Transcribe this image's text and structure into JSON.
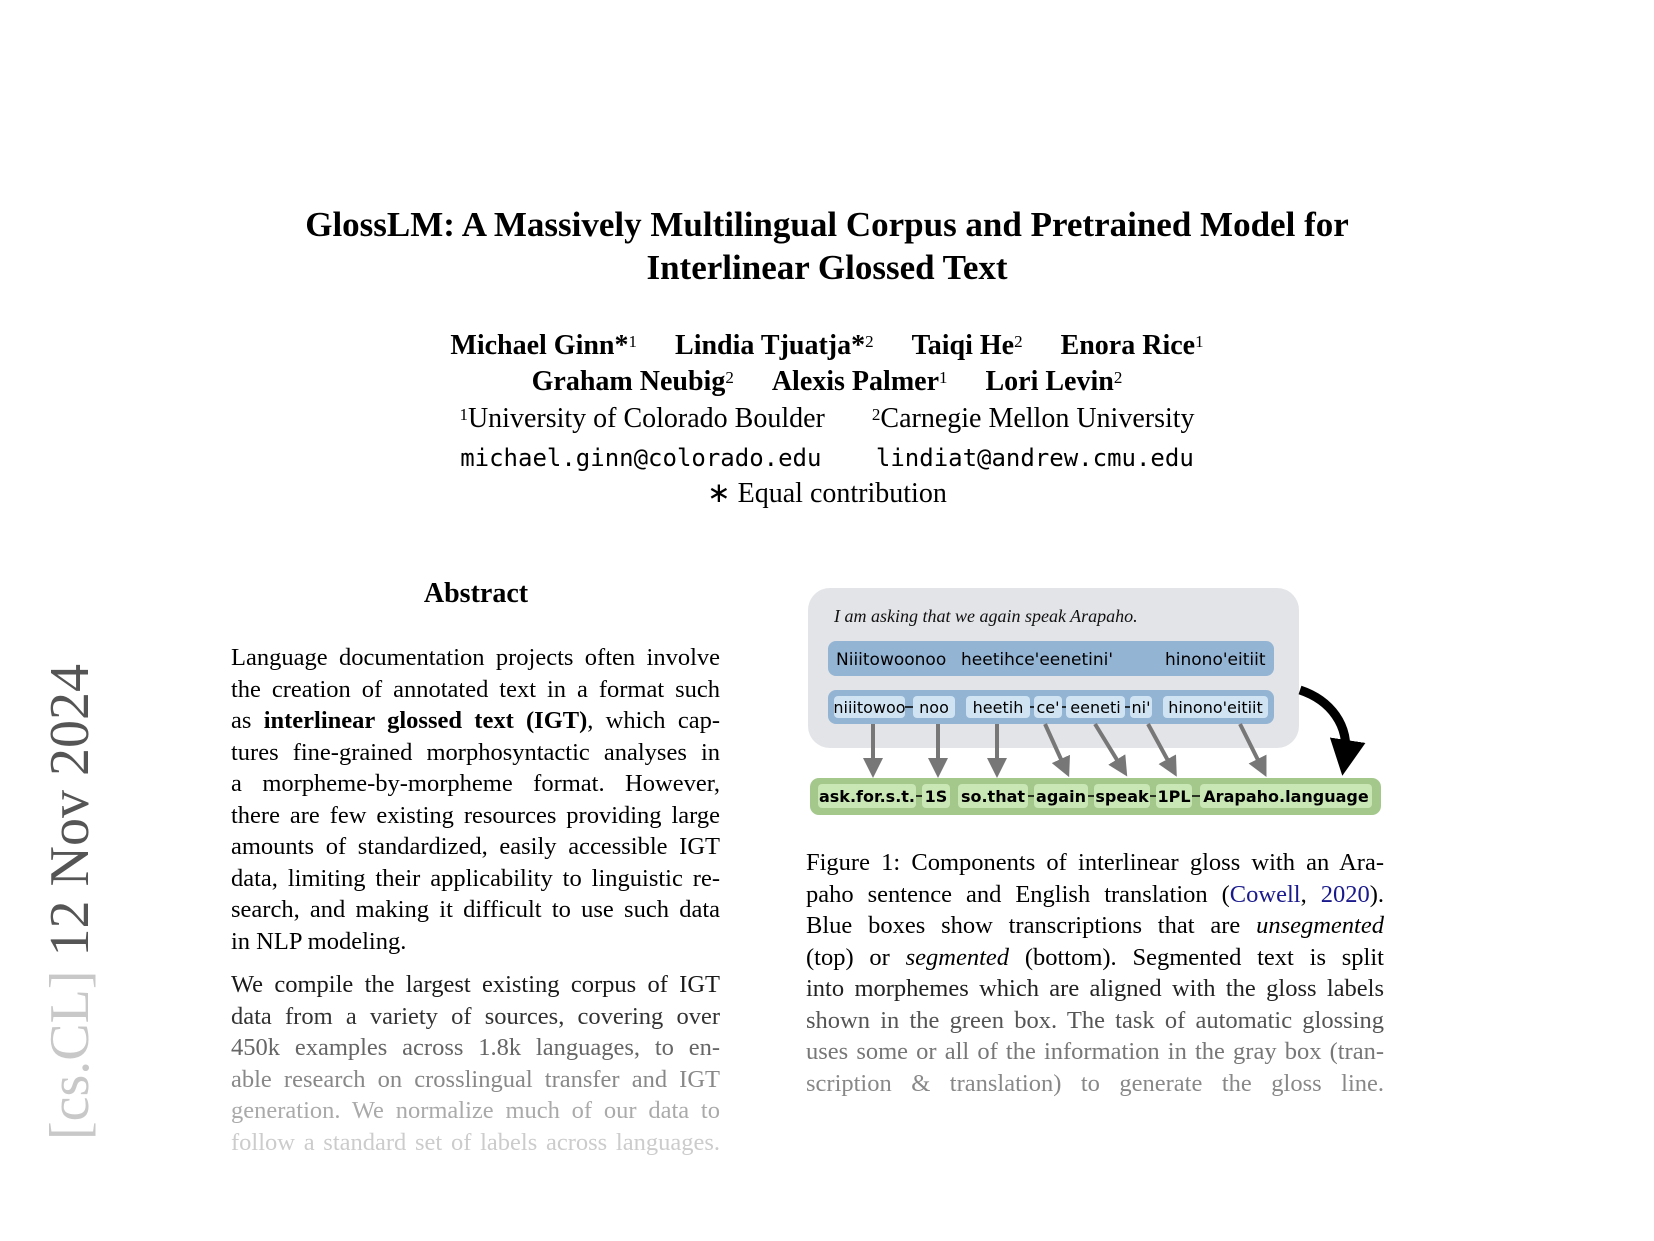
{
  "paper": {
    "title_lines": [
      "GlossLM: A Massively Multilingual Corpus and Pretrained Model for",
      "Interlinear Glossed Text"
    ],
    "authors_row1": [
      {
        "name": "Michael Ginn*",
        "aff": "1"
      },
      {
        "name": "Lindia Tjuatja*",
        "aff": "2"
      },
      {
        "name": "Taiqi He",
        "aff": "2"
      },
      {
        "name": "Enora Rice",
        "aff": "1"
      }
    ],
    "authors_row2": [
      {
        "name": "Graham Neubig",
        "aff": "2"
      },
      {
        "name": "Alexis Palmer",
        "aff": "1"
      },
      {
        "name": "Lori Levin",
        "aff": "2"
      }
    ],
    "affiliations": [
      {
        "num": "1",
        "name": "University of Colorado Boulder"
      },
      {
        "num": "2",
        "name": "Carnegie Mellon University"
      }
    ],
    "emails": [
      "michael.ginn@colorado.edu",
      "lindiat@andrew.cmu.edu"
    ],
    "equal_contribution": "∗ Equal contribution",
    "arxiv_stamp": {
      "category": "[cs.CL]",
      "date": "12 Nov 2024"
    }
  },
  "abstract": {
    "heading": "Abstract",
    "paragraphs": [
      [
        [
          [
            "Language documentation projects often involve",
            ""
          ]
        ],
        [
          [
            "the creation of annotated text in a format such",
            ""
          ]
        ],
        [
          [
            "as ",
            ""
          ],
          [
            "interlinear glossed text (IGT)",
            "b"
          ],
          [
            ", which cap-",
            ""
          ]
        ],
        [
          [
            "tures fine-grained morphosyntactic analyses in",
            ""
          ]
        ],
        [
          [
            "a morpheme-by-morpheme format. However,",
            ""
          ]
        ],
        [
          [
            "there are few existing resources providing large",
            ""
          ]
        ],
        [
          [
            "amounts of standardized, easily accessible IGT",
            ""
          ]
        ],
        [
          [
            "data, limiting their applicability to linguistic re-",
            ""
          ]
        ],
        [
          [
            "search, and making it difficult to use such data",
            ""
          ]
        ],
        [
          [
            "in NLP modeling.",
            ""
          ]
        ]
      ],
      [
        [
          [
            "We compile the largest existing corpus of IGT",
            ""
          ]
        ],
        [
          [
            "data from a variety of sources, covering over",
            ""
          ]
        ],
        [
          [
            "450k examples across 1.8k languages, to en-",
            ""
          ]
        ],
        [
          [
            "able research on crosslingual transfer and IGT",
            ""
          ]
        ],
        [
          [
            "generation. We normalize much of our data to",
            ""
          ]
        ],
        [
          [
            "follow a standard set of labels across languages.",
            ""
          ]
        ]
      ]
    ]
  },
  "figure": {
    "translation": "I am asking that we again speak Arapaho.",
    "unsegmented": [
      "Niiitowoonoo",
      "heetihce'eenetini'",
      "hinono'eitiit"
    ],
    "segmented": [
      "niiitowoo",
      "noo",
      "heetih",
      "ce'",
      "eeneti",
      "ni'",
      "hinono'eitiit"
    ],
    "gloss": [
      "ask.for.s.t.",
      "1S",
      "so.that",
      "again",
      "speak",
      "1PL",
      "Arapaho.language"
    ],
    "colors": {
      "gray_box": "#e3e4e8",
      "blue_box": "#94b4d4",
      "light_blue": "#cfe3f2",
      "green_box": "#a4c88c",
      "light_green": "#c9e6b5",
      "arrow": "#777777"
    },
    "caption_lines": [
      [
        [
          "Figure 1: Components of interlinear gloss with an Ara-",
          ""
        ]
      ],
      [
        [
          "paho sentence and English translation (",
          ""
        ],
        [
          "Cowell",
          "link"
        ],
        [
          ", ",
          ""
        ],
        [
          "2020",
          "link"
        ],
        [
          ").",
          ""
        ]
      ],
      [
        [
          "Blue boxes show transcriptions that are ",
          ""
        ],
        [
          "unsegmented",
          "i"
        ]
      ],
      [
        [
          "(top) or ",
          ""
        ],
        [
          "segmented",
          "i"
        ],
        [
          " (bottom).  Segmented text is split",
          ""
        ]
      ],
      [
        [
          "into morphemes which are aligned with the gloss labels",
          ""
        ]
      ],
      [
        [
          "shown in the green box. The task of automatic glossing",
          ""
        ]
      ],
      [
        [
          "uses some or all of the information in the gray box (tran-",
          ""
        ]
      ],
      [
        [
          "scription & translation) to generate the gloss line.",
          ""
        ]
      ]
    ]
  }
}
